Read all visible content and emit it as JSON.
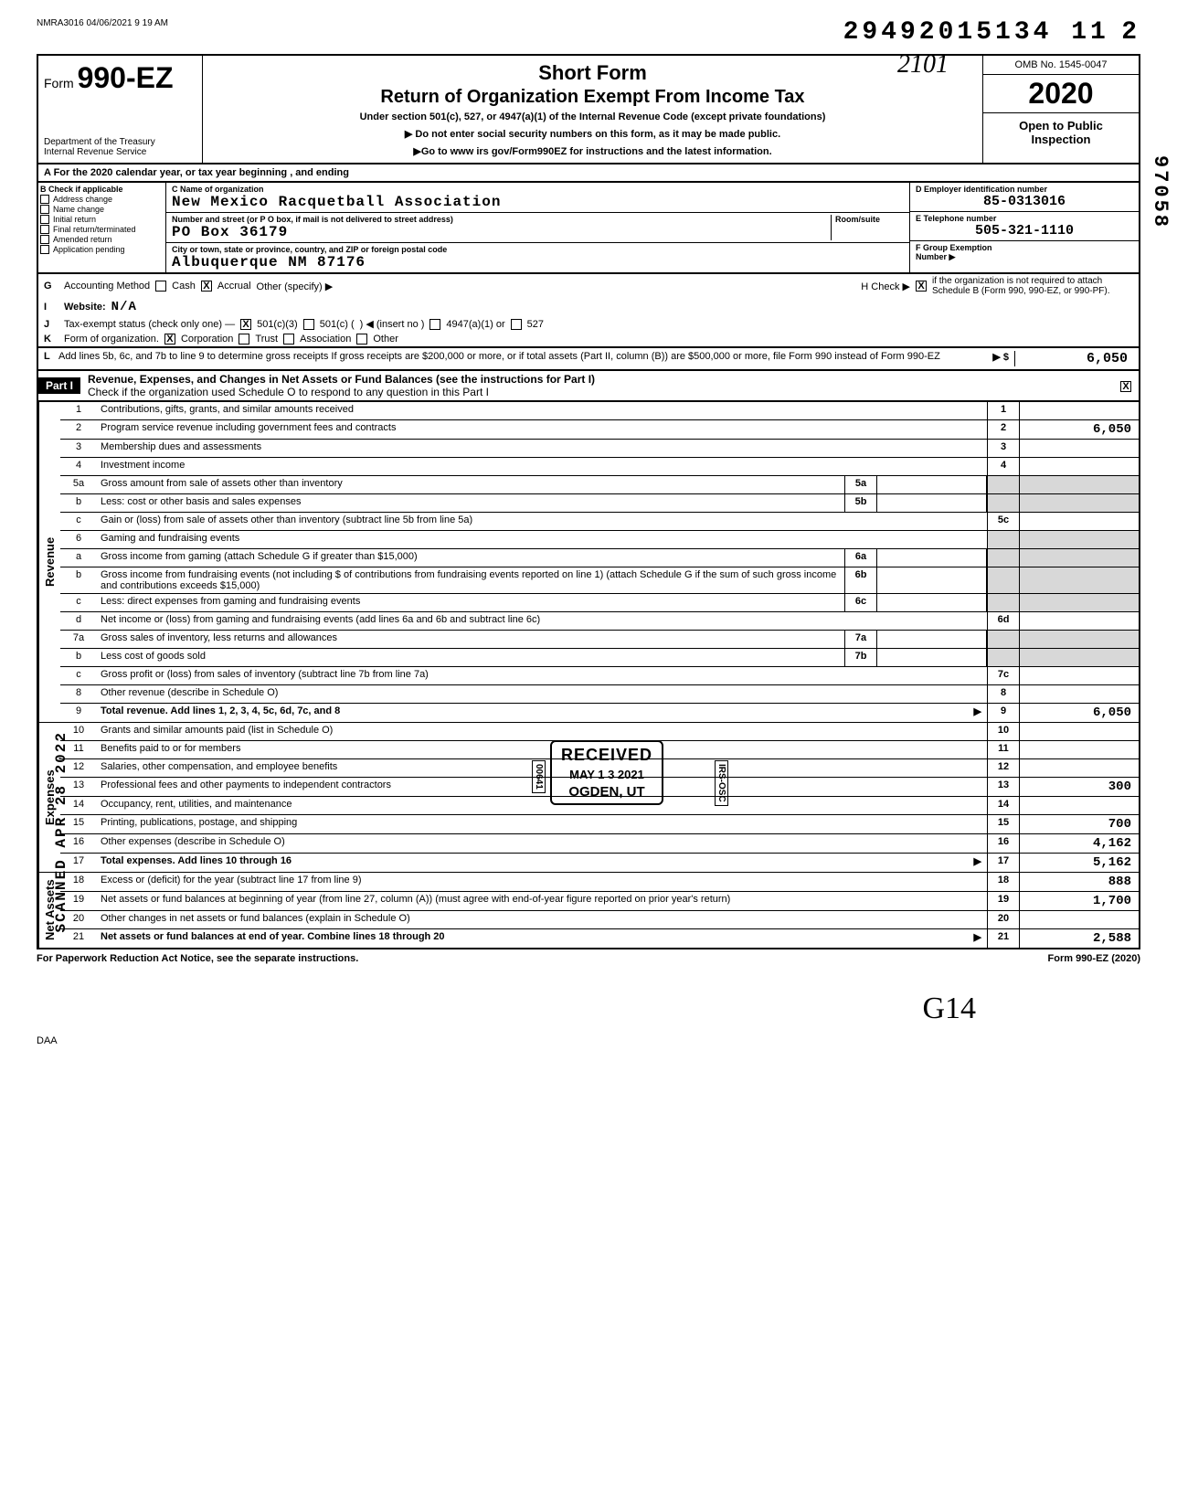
{
  "header": {
    "file_stamp": "NMRA3016 04/06/2021 9 19 AM",
    "top_number": "29492015134 11",
    "top_number_suffix": "2",
    "handwritten_top": "2101",
    "vert_right": "97058"
  },
  "form_header": {
    "form_prefix": "Form",
    "form_number": "990-EZ",
    "dept1": "Department of the Treasury",
    "dept2": "Internal Revenue Service",
    "title1": "Short Form",
    "title2": "Return of Organization Exempt From Income Tax",
    "subtitle": "Under section 501(c), 527, or 4947(a)(1) of the Internal Revenue Code (except private foundations)",
    "warn1": "▶ Do not enter social security numbers on this form, as it may be made public.",
    "warn2": "▶Go to www irs gov/Form990EZ for instructions and the latest information.",
    "omb": "OMB No. 1545-0047",
    "year": "2020",
    "open_public": "Open to Public Inspection"
  },
  "row_a": "A    For the 2020 calendar year, or tax year beginning                                        , and ending",
  "section_b": {
    "header": "B   Check if applicable",
    "items": [
      "Address change",
      "Name change",
      "Initial return",
      "Final return/terminated",
      "Amended return",
      "Application pending"
    ]
  },
  "section_c": {
    "label_name": "C  Name of organization",
    "name": "New Mexico Racquetball Association",
    "label_addr": "Number and street (or P O  box, if mail is not delivered to street address)",
    "room_label": "Room/suite",
    "addr": "PO Box 36179",
    "label_city": "City or town, state or province, country, and ZIP or foreign postal code",
    "city": "Albuquerque                                    NM  87176"
  },
  "section_d": {
    "label": "D  Employer identification number",
    "ein": "85-0313016",
    "label_e": "E  Telephone number",
    "phone": "505-321-1110",
    "label_f": "F  Group Exemption",
    "label_f2": "Number  ▶"
  },
  "gk": {
    "g": "Accounting Method",
    "g_cash": "Cash",
    "g_accrual": "Accrual",
    "g_other": "Other (specify) ▶",
    "h": "H    Check ▶",
    "h_txt": "if the organization is not required to attach Schedule B (Form 990, 990-EZ, or 990-PF).",
    "i": "Website:",
    "i_val": "N/A",
    "j": "Tax-exempt status (check only one) —",
    "j_5013": "501(c)(3)",
    "j_501c": "501(c) (",
    "j_insert": ") ◀ (insert no )",
    "j_4947": "4947(a)(1) or",
    "j_527": "527",
    "k": "Form of organization.",
    "k_corp": "Corporation",
    "k_trust": "Trust",
    "k_assoc": "Association",
    "k_other": "Other"
  },
  "line_l": {
    "l_label": "L",
    "text": "Add lines 5b, 6c, and 7b to line 9 to determine gross receipts  If gross receipts are $200,000 or more, or if total assets (Part II, column (B)) are $500,000 or more, file Form 990 instead of Form 990-EZ",
    "arrow": "▶  $",
    "value": "6,050"
  },
  "part1": {
    "label": "Part I",
    "title": "Revenue, Expenses, and Changes in Net Assets or Fund Balances (see the instructions for Part I)",
    "sub": "Check if the organization used Schedule O to respond to any question in this Part I",
    "checked": "X"
  },
  "vert_labels": {
    "revenue": "Revenue",
    "expenses": "Expenses",
    "netassets": "Net Assets",
    "scanned": "SCANNED APR 28 2022"
  },
  "lines": [
    {
      "no": "1",
      "desc": "Contributions, gifts, grants, and similar amounts received",
      "end_no": "1",
      "end_val": ""
    },
    {
      "no": "2",
      "desc": "Program service revenue including government fees and contracts",
      "end_no": "2",
      "end_val": "6,050"
    },
    {
      "no": "3",
      "desc": "Membership dues and assessments",
      "end_no": "3",
      "end_val": ""
    },
    {
      "no": "4",
      "desc": "Investment income",
      "end_no": "4",
      "end_val": ""
    },
    {
      "no": "5a",
      "desc": "Gross amount from sale of assets other than inventory",
      "mid_no": "5a",
      "mid_val": "",
      "shaded_end": true
    },
    {
      "no": "b",
      "desc": "Less: cost or other basis and sales expenses",
      "mid_no": "5b",
      "mid_val": "",
      "shaded_end": true
    },
    {
      "no": "c",
      "desc": "Gain or (loss) from sale of assets other than inventory (subtract line 5b from line 5a)",
      "end_no": "5c",
      "end_val": ""
    },
    {
      "no": "6",
      "desc": "Gaming and fundraising events",
      "shaded_end": true,
      "no_end_no": true
    },
    {
      "no": "a",
      "desc": "Gross income from gaming (attach Schedule G if greater than $15,000)",
      "mid_no": "6a",
      "mid_val": "",
      "shaded_end": true
    },
    {
      "no": "b",
      "desc": "Gross income from fundraising events (not including $                           of contributions from fundraising events reported on line 1) (attach Schedule G if the sum of such gross income and contributions exceeds $15,000)",
      "mid_no": "6b",
      "mid_val": "",
      "shaded_end": true
    },
    {
      "no": "c",
      "desc": "Less: direct expenses from gaming and fundraising events",
      "mid_no": "6c",
      "mid_val": "",
      "shaded_end": true
    },
    {
      "no": "d",
      "desc": "Net income or (loss) from gaming and fundraising events (add lines 6a and 6b and subtract line 6c)",
      "end_no": "6d",
      "end_val": ""
    },
    {
      "no": "7a",
      "desc": "Gross sales of inventory, less returns and allowances",
      "mid_no": "7a",
      "mid_val": "",
      "shaded_end": true
    },
    {
      "no": "b",
      "desc": "Less cost of goods sold",
      "mid_no": "7b",
      "mid_val": "",
      "shaded_end": true
    },
    {
      "no": "c",
      "desc": "Gross profit or (loss) from sales of inventory (subtract line 7b from line 7a)",
      "end_no": "7c",
      "end_val": ""
    },
    {
      "no": "8",
      "desc": "Other revenue (describe in Schedule O)",
      "end_no": "8",
      "end_val": ""
    },
    {
      "no": "9",
      "desc": "Total revenue. Add lines 1, 2, 3, 4, 5c, 6d, 7c, and 8",
      "bold": true,
      "end_no": "9",
      "end_val": "6,050",
      "arrow": true
    },
    {
      "no": "10",
      "desc": "Grants and similar amounts paid (list in Schedule O)",
      "end_no": "10",
      "end_val": ""
    },
    {
      "no": "11",
      "desc": "Benefits paid to or for members",
      "end_no": "11",
      "end_val": ""
    },
    {
      "no": "12",
      "desc": "Salaries, other compensation, and employee benefits",
      "end_no": "12",
      "end_val": ""
    },
    {
      "no": "13",
      "desc": "Professional fees and other payments to independent contractors",
      "end_no": "13",
      "end_val": "300"
    },
    {
      "no": "14",
      "desc": "Occupancy, rent, utilities, and maintenance",
      "end_no": "14",
      "end_val": ""
    },
    {
      "no": "15",
      "desc": "Printing, publications, postage, and shipping",
      "end_no": "15",
      "end_val": "700"
    },
    {
      "no": "16",
      "desc": "Other expenses (describe in Schedule O)",
      "end_no": "16",
      "end_val": "4,162"
    },
    {
      "no": "17",
      "desc": "Total expenses. Add lines 10 through 16",
      "bold": true,
      "end_no": "17",
      "end_val": "5,162",
      "arrow": true
    },
    {
      "no": "18",
      "desc": "Excess or (deficit) for the year (subtract line 17 from line 9)",
      "end_no": "18",
      "end_val": "888"
    },
    {
      "no": "19",
      "desc": "Net assets or fund balances at beginning of year (from line 27, column (A)) (must agree with end-of-year figure reported on prior year's return)",
      "end_no": "19",
      "end_val": "1,700"
    },
    {
      "no": "20",
      "desc": "Other changes in net assets or fund balances (explain in Schedule O)",
      "end_no": "20",
      "end_val": ""
    },
    {
      "no": "21",
      "desc": "Net assets or fund balances at end of year. Combine lines 18 through 20",
      "bold": true,
      "end_no": "21",
      "end_val": "2,588",
      "arrow": true
    }
  ],
  "stamp": {
    "received": "RECEIVED",
    "date": "MAY 1 3 2021",
    "loc": "OGDEN, UT",
    "side1": "00641",
    "side2": "IRS-OSC"
  },
  "footer": {
    "left": "For Paperwork Reduction Act Notice, see the separate instructions.",
    "right": "Form 990-EZ (2020)",
    "daa": "DAA",
    "hand": "G14"
  },
  "colors": {
    "border": "#000000",
    "shade": "#d8d8d8",
    "bg": "#ffffff"
  }
}
